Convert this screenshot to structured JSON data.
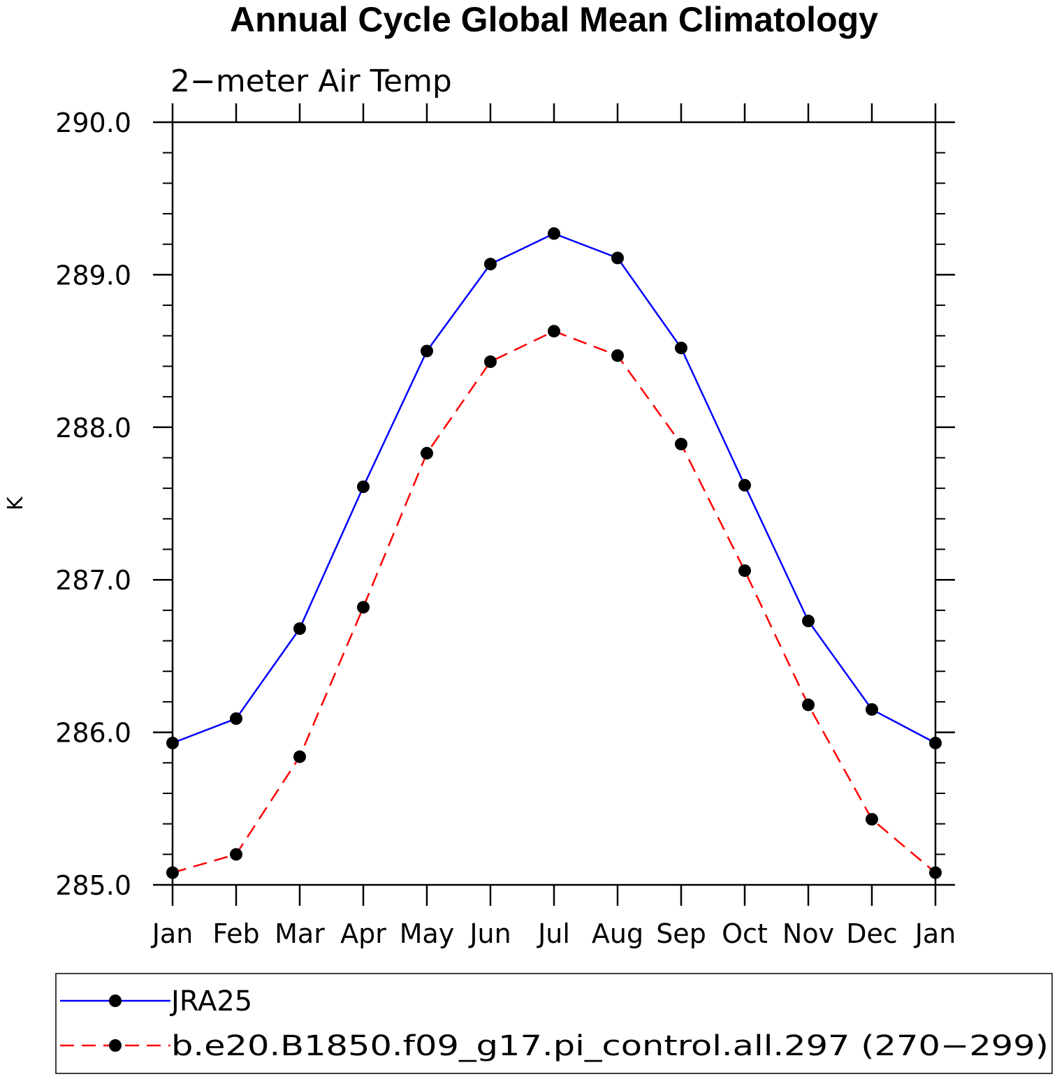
{
  "chart_data": {
    "type": "line",
    "title": "Annual Cycle Global Mean Climatology",
    "subtitle": "2−meter Air Temp",
    "xlabel": "",
    "ylabel": "K",
    "categories": [
      "Jan",
      "Feb",
      "Mar",
      "Apr",
      "May",
      "Jun",
      "Jul",
      "Aug",
      "Sep",
      "Oct",
      "Nov",
      "Dec",
      "Jan"
    ],
    "ylim": [
      285.0,
      290.0
    ],
    "yticks": [
      "285.0",
      "286.0",
      "287.0",
      "288.0",
      "289.0",
      "290.0"
    ],
    "grid": false,
    "legend_placement": "bottom",
    "series": [
      {
        "name": "JRA25",
        "color": "#0000ff",
        "dash": "solid",
        "marker": "circle",
        "values": [
          285.93,
          286.09,
          286.68,
          287.61,
          288.5,
          289.07,
          289.27,
          289.11,
          288.52,
          287.62,
          286.73,
          286.15,
          285.93
        ]
      },
      {
        "name": "b.e20.B1850.f09_g17.pi_control.all.297 (270−299)",
        "color": "#ff0000",
        "dash": "dashed",
        "marker": "circle",
        "values": [
          285.08,
          285.2,
          285.84,
          286.82,
          287.83,
          288.43,
          288.63,
          288.47,
          287.89,
          287.06,
          286.18,
          285.43,
          285.08
        ]
      }
    ]
  }
}
